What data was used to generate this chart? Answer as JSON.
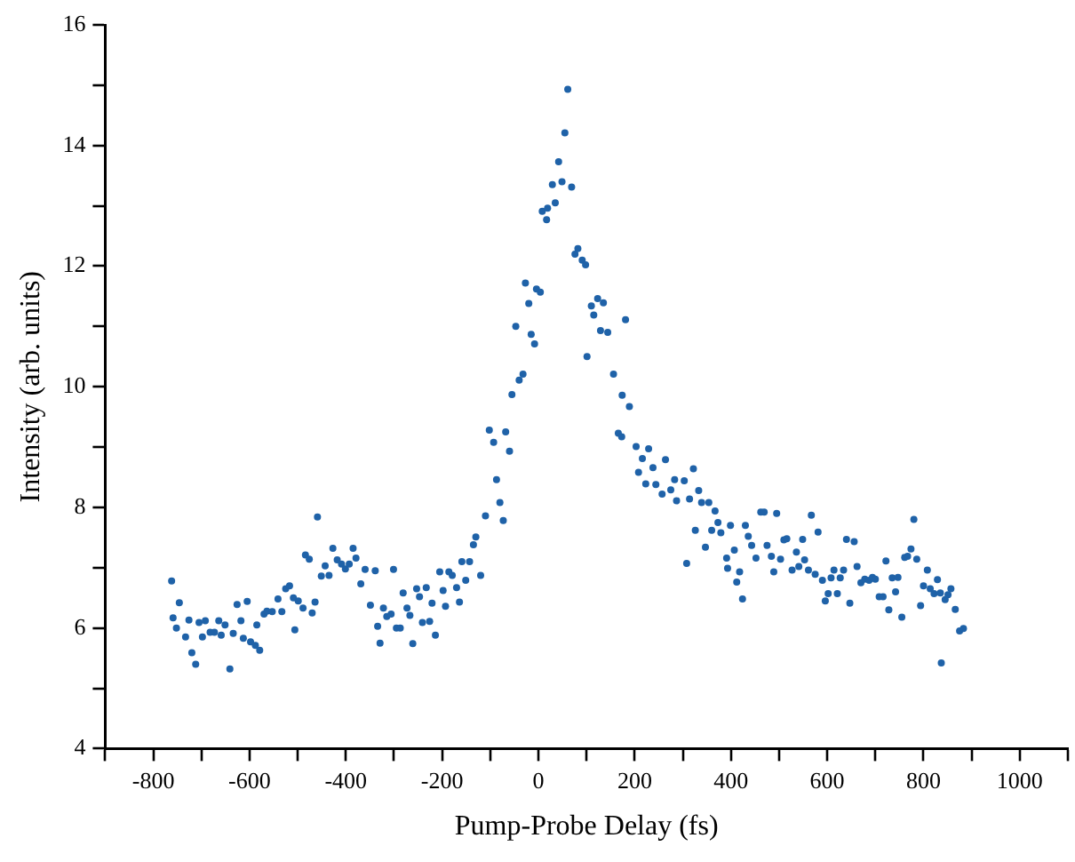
{
  "chart_data": {
    "type": "scatter",
    "xlabel": "Pump-Probe Delay (fs)",
    "ylabel": "Intensity (arb. units)",
    "marker": "circle",
    "grid": false,
    "xlim": [
      -900,
      1100
    ],
    "xticks": [
      {
        "value": -900,
        "label": null
      },
      -800,
      {
        "value": -700,
        "label": null
      },
      -600,
      {
        "value": -500,
        "label": null
      },
      -400,
      {
        "value": -300,
        "label": null
      },
      -200,
      {
        "value": -100,
        "label": null
      },
      0,
      {
        "value": 100,
        "label": null
      },
      200,
      {
        "value": 300,
        "label": null
      },
      400,
      {
        "value": 500,
        "label": null
      },
      600,
      {
        "value": 700,
        "label": null
      },
      800,
      {
        "value": 900,
        "label": null
      },
      1000,
      {
        "value": 1100,
        "label": null
      }
    ],
    "ylim": [
      4,
      16
    ],
    "yticks": [
      4,
      {
        "value": 5,
        "label": null
      },
      6,
      {
        "value": 7,
        "label": null
      },
      8,
      {
        "value": 9,
        "label": null
      },
      10,
      {
        "value": 11,
        "label": null
      },
      12,
      {
        "value": 13,
        "label": null
      },
      14,
      {
        "value": 15,
        "label": null
      },
      16
    ],
    "series": [
      {
        "color": "#1f62a8",
        "x": [
          -762,
          -759,
          -746,
          -752,
          -733,
          -726,
          -720,
          -712,
          -705,
          -698,
          -692,
          -682,
          -673,
          -664,
          -659,
          -651,
          -641,
          -634,
          -626,
          -618,
          -613,
          -605,
          -598,
          -588,
          -579,
          -585,
          -570,
          -564,
          -553,
          -541,
          -533,
          -525,
          -517,
          -509,
          -506,
          -499,
          -489,
          -484,
          -476,
          -470,
          -464,
          -459,
          -451,
          -443,
          -435,
          -427,
          -418,
          -409,
          -401,
          -393,
          -385,
          -379,
          -369,
          -360,
          -349,
          -339,
          -334,
          -329,
          -322,
          -315,
          -306,
          -301,
          -295,
          -287,
          -281,
          -273,
          -267,
          -261,
          -253,
          -247,
          -241,
          -233,
          -226,
          -221,
          -214,
          -205,
          -198,
          -193,
          -186,
          -179,
          -170,
          -164,
          -159,
          -151,
          -143,
          -135,
          -130,
          -120,
          -110,
          -87,
          -80,
          -73,
          -102,
          -93,
          -68,
          -60,
          -55,
          -40,
          -32,
          -47,
          -15,
          -8,
          -20,
          -27,
          -4,
          4,
          8,
          17,
          19,
          35,
          29,
          49,
          69,
          42,
          55,
          61,
          76,
          82,
          91,
          98,
          110,
          123,
          135,
          115,
          129,
          144,
          181,
          101,
          156,
          174,
          189,
          166,
          173,
          203,
          229,
          216,
          238,
          208,
          264,
          223,
          244,
          257,
          275,
          287,
          283,
          303,
          322,
          314,
          333,
          339,
          354,
          367,
          373,
          379,
          399,
          326,
          360,
          347,
          308,
          391,
          407,
          393,
          418,
          412,
          424,
          430,
          436,
          443,
          452,
          462,
          469,
          475,
          484,
          489,
          495,
          503,
          510,
          516,
          527,
          536,
          541,
          549,
          553,
          561,
          567,
          575,
          581,
          590,
          596,
          602,
          608,
          614,
          621,
          627,
          634,
          640,
          647,
          656,
          662,
          670,
          678,
          687,
          694,
          700,
          708,
          716,
          722,
          728,
          735,
          742,
          747,
          755,
          761,
          767,
          774,
          780,
          786,
          794,
          800,
          808,
          814,
          822,
          829,
          835,
          837,
          845,
          851,
          857,
          866,
          875,
          883
        ],
        "values": [
          6.78,
          6.17,
          6.42,
          6.0,
          5.85,
          6.13,
          5.59,
          5.4,
          6.09,
          5.85,
          6.12,
          5.93,
          5.93,
          6.12,
          5.88,
          6.05,
          5.32,
          5.91,
          6.39,
          6.12,
          5.83,
          6.44,
          5.77,
          5.71,
          5.63,
          6.05,
          6.23,
          6.28,
          6.27,
          6.48,
          6.27,
          6.65,
          6.7,
          6.5,
          5.97,
          6.45,
          6.33,
          7.21,
          7.14,
          6.25,
          6.43,
          7.84,
          6.86,
          7.03,
          6.87,
          7.32,
          7.13,
          7.06,
          6.98,
          7.06,
          7.32,
          7.16,
          6.73,
          6.97,
          6.38,
          6.95,
          6.03,
          5.75,
          6.33,
          6.19,
          6.23,
          6.97,
          6.0,
          6.0,
          6.58,
          6.33,
          6.21,
          5.74,
          6.65,
          6.52,
          6.09,
          6.67,
          6.11,
          6.41,
          5.88,
          6.93,
          6.62,
          6.36,
          6.93,
          6.87,
          6.67,
          6.43,
          7.1,
          6.79,
          7.1,
          7.38,
          7.51,
          6.87,
          7.86,
          8.46,
          8.08,
          7.78,
          9.28,
          9.08,
          9.25,
          8.93,
          9.87,
          10.11,
          10.21,
          11.0,
          10.87,
          10.71,
          11.38,
          11.72,
          11.62,
          11.57,
          12.91,
          12.77,
          12.96,
          13.05,
          13.35,
          13.4,
          13.31,
          13.73,
          14.21,
          14.93,
          12.2,
          12.29,
          12.1,
          12.02,
          11.34,
          11.46,
          11.39,
          11.19,
          10.93,
          10.9,
          11.11,
          10.5,
          10.21,
          9.86,
          9.67,
          9.23,
          9.17,
          9.01,
          8.97,
          8.81,
          8.66,
          8.58,
          8.79,
          8.39,
          8.38,
          8.22,
          8.29,
          8.11,
          8.46,
          8.44,
          8.64,
          8.14,
          8.28,
          8.08,
          8.08,
          7.94,
          7.75,
          7.58,
          7.7,
          7.62,
          7.62,
          7.34,
          7.07,
          7.16,
          7.29,
          6.99,
          6.93,
          6.76,
          6.48,
          7.7,
          7.52,
          7.37,
          7.16,
          7.92,
          7.92,
          7.37,
          7.19,
          6.93,
          7.9,
          7.14,
          7.46,
          7.48,
          6.96,
          7.26,
          7.02,
          7.47,
          7.13,
          6.96,
          7.87,
          6.89,
          7.59,
          6.79,
          6.45,
          6.57,
          6.83,
          6.96,
          6.57,
          6.83,
          6.96,
          7.47,
          6.41,
          7.43,
          7.02,
          6.75,
          6.81,
          6.79,
          6.84,
          6.81,
          6.52,
          6.52,
          7.11,
          6.3,
          6.83,
          6.6,
          6.84,
          6.18,
          7.17,
          7.19,
          7.31,
          7.8,
          7.14,
          6.37,
          6.7,
          6.96,
          6.65,
          6.57,
          6.8,
          6.58,
          5.42,
          6.47,
          6.55,
          6.65,
          6.31,
          5.95,
          5.99
        ]
      }
    ]
  }
}
